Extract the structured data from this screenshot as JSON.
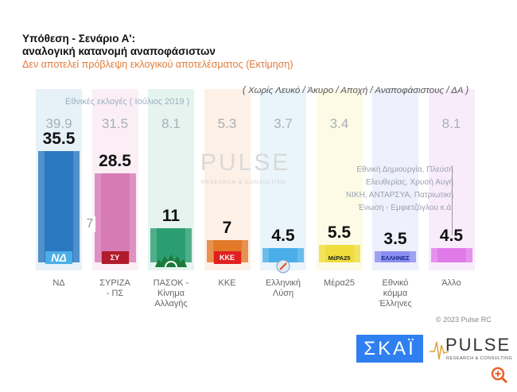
{
  "header": {
    "title_line1": "Υπόθεση - Σενάριο Α':",
    "title_line2": "αναλογική κατανομή αναποφάσιστων",
    "subtitle": "Δεν αποτελεί πρόβλεψη εκλογικού αποτελέσματος   (Εκτίμηση)",
    "exclusion_note": "( Χωρίς Λευκό / Άκυρο / Αποχή / Αναποφάσιστους / ΔΑ )"
  },
  "chart_data": {
    "type": "bar",
    "title": "Υπόθεση - Σενάριο Α': αναλογική κατανομή αναποφάσιστων",
    "previous_label": "Εθνικές εκλογές  ( Ιούλιος 2019 )",
    "categories": [
      "ΝΔ",
      "ΣΥΡΙΖΑ - ΠΣ",
      "ΠΑΣΟΚ - Κίνημα Αλλαγής",
      "ΚΚΕ",
      "Ελληνική Λύση",
      "Μέρα25",
      "Εθνικό κόμμα Έλληνες",
      "Άλλο"
    ],
    "category_lines": [
      [
        "ΝΔ"
      ],
      [
        "ΣΥΡΙΖΑ",
        "- ΠΣ"
      ],
      [
        "ΠΑΣΟΚ -",
        "Κίνημα",
        "Αλλαγής"
      ],
      [
        "ΚΚΕ"
      ],
      [
        "Ελληνική",
        "Λύση"
      ],
      [
        "Μέρα25"
      ],
      [
        "Εθνικό",
        "κόμμα",
        "Έλληνες"
      ],
      [
        "Άλλο"
      ]
    ],
    "series": [
      {
        "name": "Εκτίμηση",
        "values": [
          35.5,
          28.5,
          11,
          7,
          4.5,
          5.5,
          3.5,
          4.5
        ],
        "labels": [
          "35.5",
          "28.5",
          "11",
          "7",
          "4.5",
          "5.5",
          "3.5",
          "4.5"
        ]
      },
      {
        "name": "Εθνικές εκλογές (Ιούλιος 2019)",
        "values": [
          39.9,
          31.5,
          8.1,
          5.3,
          3.7,
          3.4,
          null,
          8.1
        ],
        "labels": [
          "39.9",
          "31.5",
          "8.1",
          "5.3",
          "3.7",
          "3.4",
          "",
          "8.1"
        ]
      }
    ],
    "difference_label": "7",
    "colors": [
      "#2a78c0",
      "#d77bb4",
      "#2a9e72",
      "#e27a2a",
      "#4aaee8",
      "#eedd3a",
      "#8a8ef0",
      "#e07ae8"
    ],
    "bg_colors": [
      "#e6f1f8",
      "#fbeef5",
      "#e6f4ef",
      "#fdf0e6",
      "#eaf4fb",
      "#fdfbe6",
      "#eef0fb",
      "#f8ecfb"
    ],
    "logos": [
      "ΝΔ",
      "ΣΥ",
      "",
      "ΚΚΕ",
      "",
      "ΜέΡΑ25",
      "ΕΛΛΗΝΕΣ",
      ""
    ],
    "ylim": [
      0,
      40
    ]
  },
  "other_note": [
    "Εθνική Δημιουργία, Πλεύση",
    "Ελευθερίας, Χρυσή Αυγή",
    "ΝΙΚΗ, ΑΝΤΑΡΣΥΑ, Πατριωτική",
    "Ένωση - Εμφιετζόγλου   κ.ά."
  ],
  "watermark": {
    "title": "PULSE",
    "subtitle": "RESEARCH & CONSULTING"
  },
  "footer": {
    "copyright": "© 2023 Pulse RC",
    "skai_logo": "ΣΚΑΪ",
    "pulse_logo": "PULSE",
    "pulse_sub": "RESEARCH & CONSULTING"
  }
}
